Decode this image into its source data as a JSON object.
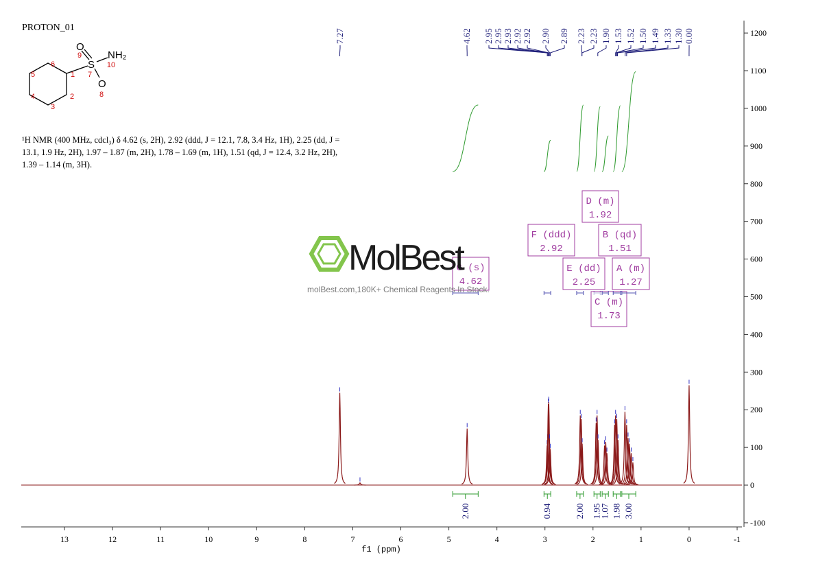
{
  "header": {
    "title": "PROTON_01",
    "description": [
      "¹H NMR (400 MHz, cdcl₃) δ 4.62 (s, 2H), 2.92 (ddd, J = 12.1, 7.8, 3.4 Hz, 1H), 2.25 (dd, J =",
      "13.1, 1.9 Hz, 2H), 1.97 – 1.87 (m, 2H), 1.78 – 1.69 (m, 1H), 1.51 (qd, J = 12.4, 3.2 Hz, 2H),",
      "1.39 – 1.14 (m, 3H)."
    ]
  },
  "molecule": {
    "atoms": [
      "O",
      "S",
      "NH₂",
      "O"
    ],
    "numbers": [
      1,
      2,
      3,
      4,
      5,
      6,
      7,
      8,
      9,
      10
    ]
  },
  "watermark": {
    "brand": "MolBest",
    "tagline": "molBest.com,180K+ Chemical Reagents In Stock."
  },
  "chart_data": {
    "type": "nmr",
    "x_label": "f1 (ppm)",
    "xlim": [
      13.9,
      -1.1
    ],
    "xticks": [
      13,
      12,
      11,
      10,
      9,
      8,
      7,
      6,
      5,
      4,
      3,
      2,
      1,
      0,
      -1
    ],
    "ylim": [
      -111,
      1233
    ],
    "yticks": [
      -100,
      0,
      100,
      200,
      300,
      400,
      500,
      600,
      700,
      800,
      900,
      1000,
      1100,
      1200
    ],
    "color": "#8b1a1a",
    "label_color": "#1f1f7a",
    "integral_color": "#2e9a2e",
    "multiplet_color": "#a03ca0",
    "x": [
      7.27,
      6.85,
      4.62,
      2.955,
      2.945,
      2.93,
      2.92,
      2.905,
      2.89,
      2.265,
      2.245,
      2.225,
      1.935,
      1.915,
      1.895,
      1.76,
      1.735,
      1.71,
      1.55,
      1.53,
      1.505,
      1.48,
      1.335,
      1.3,
      1.27,
      1.24,
      1.205,
      1.17,
      0
    ],
    "values": [
      245,
      6,
      150,
      105,
      120,
      215,
      220,
      120,
      95,
      185,
      175,
      110,
      165,
      185,
      120,
      105,
      115,
      85,
      160,
      185,
      175,
      120,
      195,
      160,
      125,
      110,
      85,
      60,
      265
    ],
    "peak_labels": [
      7.27,
      4.62,
      2.95,
      2.95,
      2.93,
      2.92,
      2.92,
      {
        "value": 2.9,
        "label": "2.90"
      },
      2.89,
      2.23,
      2.23,
      {
        "value": 1.9,
        "label": "1.90"
      },
      1.53,
      1.52,
      {
        "value": 1.5,
        "label": "1.50"
      },
      1.49,
      1.33,
      {
        "value": 1.3,
        "label": "1.30"
      },
      {
        "value": 0,
        "label": "0.00"
      }
    ],
    "multiplets": [
      {
        "name": "G (s)",
        "shift": 4.62,
        "range": [
          4.92,
          4.39
        ],
        "integral": {
          "value": 2,
          "label": "2.00"
        }
      },
      {
        "name": "F (ddd)",
        "shift": 2.92,
        "range": [
          3.02,
          2.88
        ],
        "integral": 0.94
      },
      {
        "name": "E (dd)",
        "shift": 2.25,
        "range": [
          2.34,
          2.2
        ],
        "integral": {
          "value": 2,
          "label": "2.00"
        }
      },
      {
        "name": "D (m)",
        "shift": 1.92,
        "range": [
          1.98,
          1.85
        ],
        "integral": 1.95
      },
      {
        "name": "C (m)",
        "shift": 1.73,
        "range": [
          1.81,
          1.68
        ],
        "integral": 1.07
      },
      {
        "name": "B (qd)",
        "shift": 1.51,
        "range": [
          1.58,
          1.43
        ],
        "integral": 1.98
      },
      {
        "name": "A (m)",
        "shift": 1.27,
        "range": [
          1.4,
          1.11
        ],
        "integral": {
          "value": 3,
          "label": "3.00"
        }
      }
    ]
  }
}
